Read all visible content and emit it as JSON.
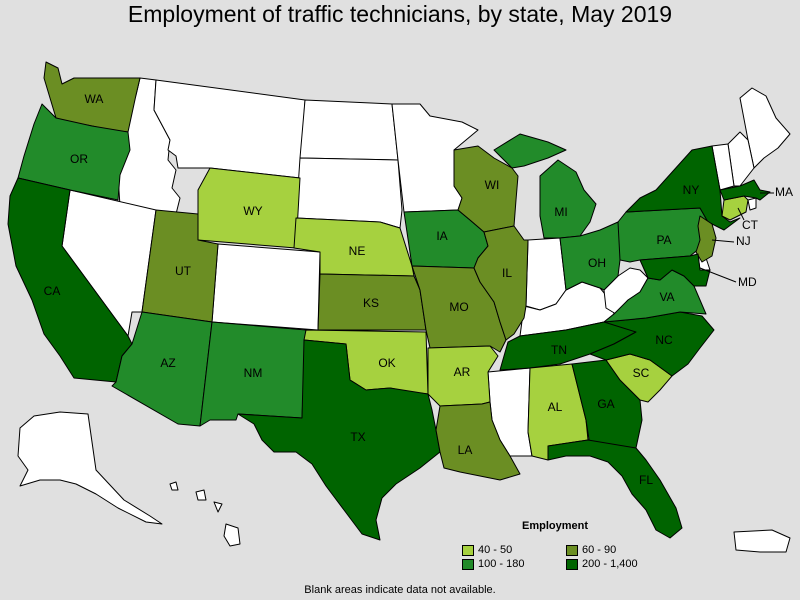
{
  "title": "Employment of traffic technicians, by state, May 2019",
  "legend": {
    "title": "Employment",
    "items": [
      {
        "label": "40 - 50",
        "color": "#a6d13f"
      },
      {
        "label": "60 - 90",
        "color": "#6b8e23"
      },
      {
        "label": "100 - 180",
        "color": "#228b2a"
      },
      {
        "label": "200 - 1,400",
        "color": "#006400"
      }
    ]
  },
  "note": "Blank areas indicate data not available.",
  "colors": {
    "no_data": "#ffffff",
    "background": "#e0e0e0"
  },
  "states": {
    "WA": {
      "label": "WA",
      "bin": 1
    },
    "OR": {
      "label": "OR",
      "bin": 2
    },
    "CA": {
      "label": "CA",
      "bin": 3
    },
    "WY": {
      "label": "WY",
      "bin": 0
    },
    "UT": {
      "label": "UT",
      "bin": 1
    },
    "AZ": {
      "label": "AZ",
      "bin": 2
    },
    "NM": {
      "label": "NM",
      "bin": 2
    },
    "NE": {
      "label": "NE",
      "bin": 0
    },
    "KS": {
      "label": "KS",
      "bin": 1
    },
    "OK": {
      "label": "OK",
      "bin": 0
    },
    "TX": {
      "label": "TX",
      "bin": 3
    },
    "IA": {
      "label": "IA",
      "bin": 2
    },
    "MO": {
      "label": "MO",
      "bin": 1
    },
    "AR": {
      "label": "AR",
      "bin": 0
    },
    "LA": {
      "label": "LA",
      "bin": 1
    },
    "WI": {
      "label": "WI",
      "bin": 1
    },
    "IL": {
      "label": "IL",
      "bin": 1
    },
    "MI": {
      "label": "MI",
      "bin": 2
    },
    "OH": {
      "label": "OH",
      "bin": 2
    },
    "TN": {
      "label": "TN",
      "bin": 3
    },
    "AL": {
      "label": "AL",
      "bin": 0
    },
    "GA": {
      "label": "GA",
      "bin": 3
    },
    "FL": {
      "label": "FL",
      "bin": 3
    },
    "SC": {
      "label": "SC",
      "bin": 0
    },
    "NC": {
      "label": "NC",
      "bin": 3
    },
    "VA": {
      "label": "VA",
      "bin": 2
    },
    "PA": {
      "label": "PA",
      "bin": 2
    },
    "NY": {
      "label": "NY",
      "bin": 3
    },
    "NJ": {
      "label": "NJ",
      "bin": 1
    },
    "MD": {
      "label": "MD",
      "bin": 3
    },
    "CT": {
      "label": "CT",
      "bin": 0
    },
    "MA": {
      "label": "MA",
      "bin": 3
    }
  }
}
